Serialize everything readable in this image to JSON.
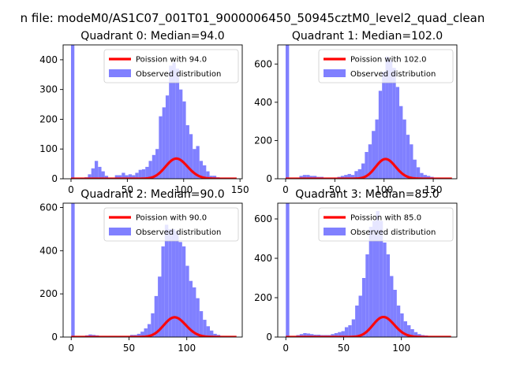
{
  "figure": {
    "suptitle": "n file: modeM0/AS1C07_001T01_9000006450_50945cztM0_level2_quad_clean"
  },
  "colors": {
    "histogram": "#8080ff",
    "poisson": "#ff0000",
    "axes": "#000000",
    "background": "#ffffff"
  },
  "chart_data": [
    {
      "type": "bar",
      "title": "Quadrant 0: Median=94.0",
      "xlim": [
        -7,
        152
      ],
      "ylim": [
        0,
        450
      ],
      "xticks": [
        0,
        50,
        100,
        150
      ],
      "yticks": [
        0,
        100,
        200,
        300,
        400
      ],
      "bin_width": 3,
      "bin_starts": [
        0,
        3,
        6,
        9,
        12,
        15,
        18,
        21,
        24,
        27,
        30,
        33,
        36,
        39,
        42,
        45,
        48,
        51,
        54,
        57,
        60,
        63,
        66,
        69,
        72,
        75,
        78,
        81,
        84,
        87,
        90,
        93,
        96,
        99,
        102,
        105,
        108,
        111,
        114,
        117,
        120,
        123,
        126,
        129,
        132,
        135,
        138
      ],
      "counts": [
        450,
        0,
        0,
        3,
        5,
        15,
        35,
        60,
        40,
        25,
        10,
        3,
        3,
        12,
        12,
        20,
        12,
        15,
        12,
        20,
        30,
        32,
        40,
        60,
        80,
        100,
        210,
        240,
        280,
        380,
        390,
        370,
        300,
        260,
        180,
        150,
        100,
        110,
        60,
        45,
        25,
        10,
        10,
        5,
        3,
        3,
        2
      ],
      "poisson_mean": 94.0,
      "poisson_scale": 1650,
      "legend": [
        {
          "label": "Poission with 94.0",
          "kind": "line"
        },
        {
          "label": "Observed distribution",
          "kind": "patch"
        }
      ]
    },
    {
      "type": "bar",
      "title": "Quadrant 1: Median=102.0",
      "xlim": [
        -8,
        174
      ],
      "ylim": [
        0,
        700
      ],
      "xticks": [
        0,
        50,
        100,
        150
      ],
      "yticks": [
        0,
        200,
        400,
        600
      ],
      "bin_width": 3.5,
      "bin_starts": [
        0,
        3.5,
        7,
        10.5,
        14,
        17.5,
        21,
        24.5,
        28,
        31.5,
        35,
        38.5,
        42,
        45.5,
        49,
        52.5,
        56,
        59.5,
        63,
        66.5,
        70,
        73.5,
        77,
        80.5,
        84,
        87.5,
        91,
        94.5,
        98,
        101.5,
        105,
        108.5,
        112,
        115.5,
        119,
        122.5,
        126,
        129.5,
        133,
        136.5,
        140,
        143.5,
        147,
        150.5,
        154,
        157.5,
        161
      ],
      "counts": [
        700,
        0,
        0,
        5,
        15,
        20,
        20,
        15,
        15,
        10,
        10,
        5,
        5,
        5,
        5,
        10,
        15,
        20,
        25,
        20,
        40,
        50,
        80,
        140,
        180,
        250,
        310,
        460,
        560,
        640,
        620,
        580,
        480,
        380,
        310,
        230,
        180,
        100,
        60,
        30,
        20,
        15,
        10,
        5,
        5,
        3,
        2
      ],
      "poisson_mean": 102.0,
      "poisson_scale": 2615,
      "legend": [
        {
          "label": "Poission with 102.0",
          "kind": "line"
        },
        {
          "label": "Observed distribution",
          "kind": "patch"
        }
      ]
    },
    {
      "type": "bar",
      "title": "Quadrant 2: Median=90.0",
      "xlim": [
        -7,
        148
      ],
      "ylim": [
        0,
        620
      ],
      "xticks": [
        0,
        50,
        100
      ],
      "yticks": [
        0,
        200,
        400,
        600
      ],
      "bin_width": 3,
      "bin_starts": [
        0,
        3,
        6,
        9,
        12,
        15,
        18,
        21,
        24,
        27,
        30,
        33,
        36,
        39,
        42,
        45,
        48,
        51,
        54,
        57,
        60,
        63,
        66,
        69,
        72,
        75,
        78,
        81,
        84,
        87,
        90,
        93,
        96,
        99,
        102,
        105,
        108,
        111,
        114,
        117,
        120,
        123,
        126,
        129,
        132,
        135,
        138
      ],
      "counts": [
        620,
        0,
        0,
        3,
        8,
        12,
        10,
        8,
        5,
        5,
        3,
        5,
        5,
        3,
        5,
        5,
        5,
        10,
        10,
        15,
        25,
        40,
        60,
        110,
        190,
        280,
        420,
        520,
        500,
        500,
        490,
        440,
        420,
        330,
        260,
        230,
        180,
        120,
        80,
        50,
        30,
        15,
        10,
        5,
        3,
        2,
        1
      ],
      "poisson_mean": 90.0,
      "poisson_scale": 2178,
      "legend": [
        {
          "label": "Poission with 90.0",
          "kind": "line"
        },
        {
          "label": "Observed distribution",
          "kind": "patch"
        }
      ]
    },
    {
      "type": "bar",
      "title": "Quadrant 3: Median=85.0",
      "xlim": [
        -7,
        148
      ],
      "ylim": [
        0,
        680
      ],
      "xticks": [
        0,
        50,
        100
      ],
      "yticks": [
        0,
        200,
        400,
        600
      ],
      "bin_width": 3,
      "bin_starts": [
        0,
        3,
        6,
        9,
        12,
        15,
        18,
        21,
        24,
        27,
        30,
        33,
        36,
        39,
        42,
        45,
        48,
        51,
        54,
        57,
        60,
        63,
        66,
        69,
        72,
        75,
        78,
        81,
        84,
        87,
        90,
        93,
        96,
        99,
        102,
        105,
        108,
        111,
        114,
        117,
        120,
        123,
        126,
        129,
        132,
        135,
        138
      ],
      "counts": [
        680,
        0,
        0,
        10,
        15,
        20,
        18,
        15,
        12,
        12,
        10,
        10,
        10,
        15,
        20,
        25,
        30,
        50,
        60,
        90,
        160,
        210,
        300,
        420,
        560,
        590,
        640,
        590,
        480,
        420,
        310,
        240,
        160,
        120,
        80,
        60,
        40,
        25,
        15,
        10,
        8,
        5,
        3,
        2,
        1,
        1,
        0
      ],
      "poisson_mean": 85.0,
      "poisson_scale": 2356,
      "legend": [
        {
          "label": "Poission with 85.0",
          "kind": "line"
        },
        {
          "label": "Observed distribution",
          "kind": "patch"
        }
      ]
    }
  ]
}
